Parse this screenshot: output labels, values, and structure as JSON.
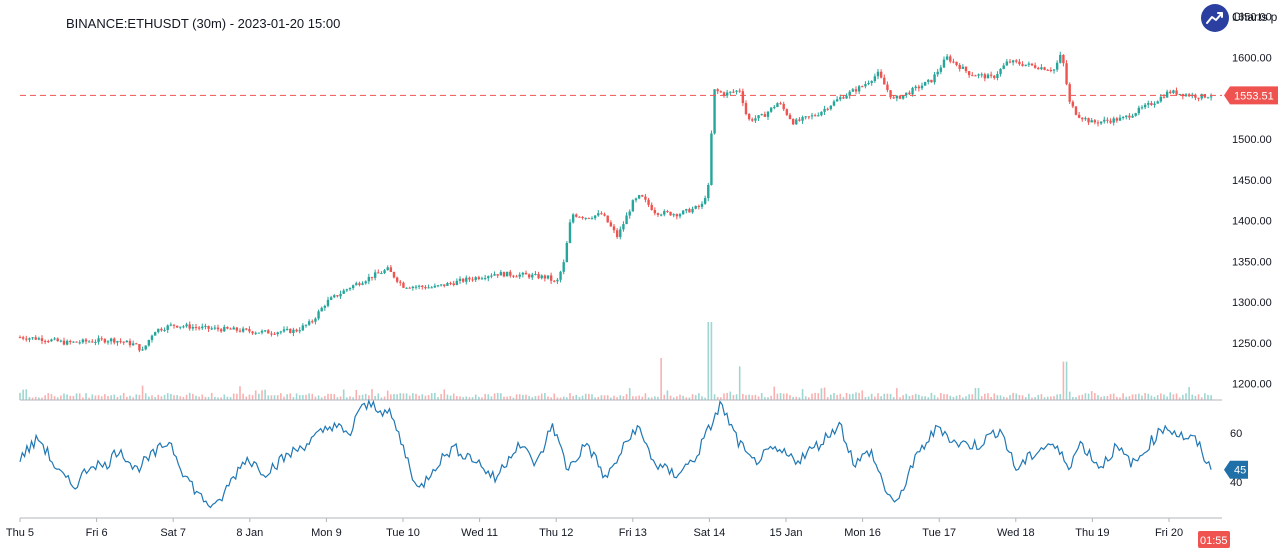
{
  "title": "BINANCE:ETHUSDT (30m) - 2023-01-20 15:00",
  "brand": {
    "label": "Charts p",
    "icon": "trend-up-icon"
  },
  "colors": {
    "up": "#26a69a",
    "down": "#ef5350",
    "price_line": "#ef5350",
    "rsi": "#1f77b4",
    "rsi_badge": "#1f6fa8",
    "axis_text": "#131722"
  },
  "chart_data": [
    {
      "type": "candlestick",
      "title": "BINANCE:ETHUSDT (30m) - 2023-01-20 15:00",
      "x_ticks": [
        "Thu 5",
        "Fri 6",
        "Sat 7",
        "8 Jan",
        "Mon 9",
        "Tue 10",
        "Wed 11",
        "Thu 12",
        "Fri 13",
        "Sat 14",
        "15 Jan",
        "Mon 16",
        "Tue 17",
        "Wed 18",
        "Thu 19",
        "Fri 20"
      ],
      "y_ticks": [
        "1200.00",
        "1250.00",
        "1300.00",
        "1350.00",
        "1400.00",
        "1450.00",
        "1500.00",
        "1550.00",
        "1600.00",
        "1650.00"
      ],
      "ylim": [
        1180,
        1652
      ],
      "last_price": 1553.51,
      "last_price_label": "1553.51",
      "price_path": [
        [
          0,
          1257
        ],
        [
          0.3,
          1255
        ],
        [
          0.6,
          1250
        ],
        [
          0.9,
          1252
        ],
        [
          1.2,
          1254
        ],
        [
          1.5,
          1248
        ],
        [
          1.6,
          1240
        ],
        [
          1.75,
          1265
        ],
        [
          2.0,
          1272
        ],
        [
          2.4,
          1268
        ],
        [
          2.8,
          1266
        ],
        [
          3.2,
          1263
        ],
        [
          3.6,
          1265
        ],
        [
          3.8,
          1275
        ],
        [
          4.0,
          1300
        ],
        [
          4.3,
          1318
        ],
        [
          4.6,
          1332
        ],
        [
          4.8,
          1340
        ],
        [
          5.0,
          1320
        ],
        [
          5.4,
          1318
        ],
        [
          5.8,
          1327
        ],
        [
          6.2,
          1335
        ],
        [
          6.6,
          1333
        ],
        [
          6.9,
          1330
        ],
        [
          7.0,
          1322
        ],
        [
          7.1,
          1348
        ],
        [
          7.2,
          1408
        ],
        [
          7.4,
          1404
        ],
        [
          7.6,
          1408
        ],
        [
          7.8,
          1380
        ],
        [
          8.0,
          1422
        ],
        [
          8.1,
          1430
        ],
        [
          8.3,
          1410
        ],
        [
          8.6,
          1408
        ],
        [
          8.9,
          1418
        ],
        [
          9.0,
          1445
        ],
        [
          9.05,
          1560
        ],
        [
          9.2,
          1555
        ],
        [
          9.4,
          1560
        ],
        [
          9.5,
          1523
        ],
        [
          9.7,
          1528
        ],
        [
          9.9,
          1545
        ],
        [
          10.1,
          1520
        ],
        [
          10.4,
          1530
        ],
        [
          10.7,
          1550
        ],
        [
          11.0,
          1565
        ],
        [
          11.2,
          1580
        ],
        [
          11.4,
          1548
        ],
        [
          11.6,
          1557
        ],
        [
          11.9,
          1572
        ],
        [
          12.1,
          1600
        ],
        [
          12.4,
          1580
        ],
        [
          12.7,
          1575
        ],
        [
          12.9,
          1595
        ],
        [
          13.2,
          1590
        ],
        [
          13.5,
          1585
        ],
        [
          13.6,
          1605
        ],
        [
          13.7,
          1545
        ],
        [
          13.8,
          1530
        ],
        [
          14.0,
          1520
        ],
        [
          14.4,
          1525
        ],
        [
          14.6,
          1535
        ],
        [
          14.8,
          1545
        ],
        [
          15.0,
          1558
        ],
        [
          15.4,
          1552
        ],
        [
          15.55,
          1553.51
        ]
      ],
      "volume_spikes": [
        [
          8.38,
          0.35
        ],
        [
          9.0,
          0.65
        ],
        [
          9.4,
          0.28
        ],
        [
          13.65,
          0.32
        ],
        [
          1.6,
          0.12
        ],
        [
          12.5,
          0.1
        ]
      ],
      "volume_ylim": [
        0,
        1
      ]
    },
    {
      "type": "line",
      "title": "",
      "x_ticks": [
        "Thu 5",
        "Fri 6",
        "Sat 7",
        "8 Jan",
        "Mon 9",
        "Tue 10",
        "Wed 11",
        "Thu 12",
        "Fri 13",
        "Sat 14",
        "15 Jan",
        "Mon 16",
        "Tue 17",
        "Wed 18",
        "Thu 19",
        "Fri 20"
      ],
      "y_ticks": [
        "40",
        "60"
      ],
      "ylim": [
        26,
        72
      ],
      "last_value": 45,
      "last_value_label": "45",
      "countdown_label": "01:55",
      "series_path": [
        [
          0,
          50
        ],
        [
          0.25,
          58
        ],
        [
          0.5,
          44
        ],
        [
          0.7,
          38
        ],
        [
          0.95,
          48
        ],
        [
          1.1,
          46
        ],
        [
          1.3,
          54
        ],
        [
          1.5,
          45
        ],
        [
          1.7,
          50
        ],
        [
          1.95,
          57
        ],
        [
          2.15,
          43
        ],
        [
          2.35,
          34
        ],
        [
          2.55,
          29
        ],
        [
          2.75,
          40
        ],
        [
          2.95,
          50
        ],
        [
          3.2,
          44
        ],
        [
          3.5,
          51
        ],
        [
          3.8,
          57
        ],
        [
          4.1,
          64
        ],
        [
          4.3,
          58
        ],
        [
          4.4,
          69
        ],
        [
          4.6,
          72
        ],
        [
          4.85,
          67
        ],
        [
          5.05,
          50
        ],
        [
          5.2,
          36
        ],
        [
          5.4,
          46
        ],
        [
          5.65,
          54
        ],
        [
          5.95,
          49
        ],
        [
          6.2,
          41
        ],
        [
          6.5,
          56
        ],
        [
          6.75,
          47
        ],
        [
          6.95,
          64
        ],
        [
          7.15,
          45
        ],
        [
          7.4,
          56
        ],
        [
          7.65,
          41
        ],
        [
          7.9,
          55
        ],
        [
          8.05,
          63
        ],
        [
          8.3,
          47
        ],
        [
          8.55,
          43
        ],
        [
          8.8,
          49
        ],
        [
          9.0,
          62
        ],
        [
          9.15,
          72
        ],
        [
          9.35,
          58
        ],
        [
          9.55,
          48
        ],
        [
          9.85,
          53
        ],
        [
          10.15,
          49
        ],
        [
          10.45,
          56
        ],
        [
          10.7,
          64
        ],
        [
          10.9,
          47
        ],
        [
          11.1,
          53
        ],
        [
          11.3,
          37
        ],
        [
          11.45,
          30
        ],
        [
          11.6,
          44
        ],
        [
          11.8,
          55
        ],
        [
          12.0,
          63
        ],
        [
          12.2,
          56
        ],
        [
          12.5,
          55
        ],
        [
          12.8,
          62
        ],
        [
          13.0,
          45
        ],
        [
          13.25,
          52
        ],
        [
          13.45,
          56
        ],
        [
          13.7,
          47
        ],
        [
          13.85,
          56
        ],
        [
          14.1,
          46
        ],
        [
          14.3,
          54
        ],
        [
          14.55,
          47
        ],
        [
          14.75,
          56
        ],
        [
          14.95,
          63
        ],
        [
          15.15,
          59
        ],
        [
          15.35,
          57
        ],
        [
          15.55,
          45
        ]
      ]
    }
  ]
}
